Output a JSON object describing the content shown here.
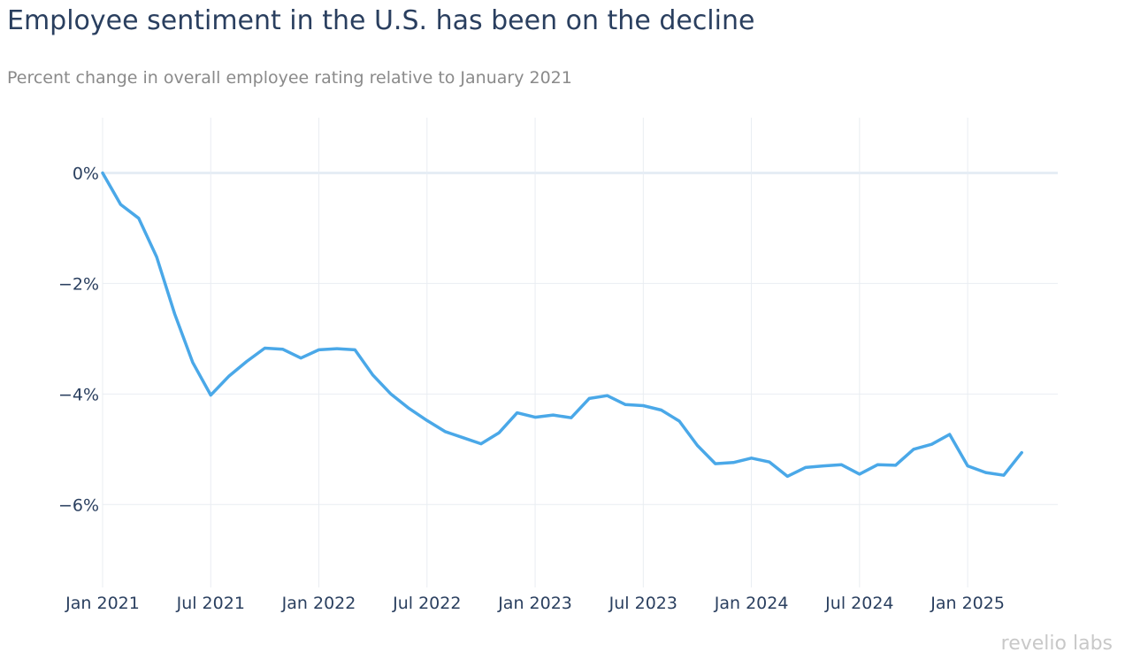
{
  "header": {
    "title": "Employee sentiment in the U.S. has been on the decline",
    "subtitle": "Percent change in overall employee rating relative to January 2021"
  },
  "brand": {
    "name": "revelio labs"
  },
  "colors": {
    "line": "#4aa8e8",
    "grid": "#e9edf2",
    "zeroline": "#e6edf5",
    "text": "#2a3f5f"
  },
  "chart_data": {
    "type": "line",
    "title": "Employee sentiment in the U.S. has been on the decline",
    "subtitle": "Percent change in overall employee rating relative to January 2021",
    "xlabel": "",
    "ylabel": "",
    "x_tick_labels": [
      "Jan 2021",
      "Jul 2021",
      "Jan 2022",
      "Jul 2022",
      "Jan 2023",
      "Jul 2023",
      "Jan 2024",
      "Jul 2024",
      "Jan 2025"
    ],
    "y_tick_labels": [
      "0%",
      "−2%",
      "−4%",
      "−6%"
    ],
    "y_ticks": [
      0,
      -2,
      -4,
      -6
    ],
    "ylim": [
      -7.5,
      1
    ],
    "xlim": [
      "2021-01",
      "2025-06"
    ],
    "grid": true,
    "legend": "none",
    "series": [
      {
        "x": [
          "2021-01",
          "2021-02",
          "2021-03",
          "2021-04",
          "2021-05",
          "2021-06",
          "2021-07",
          "2021-08",
          "2021-09",
          "2021-10",
          "2021-11",
          "2021-12",
          "2022-01",
          "2022-02",
          "2022-03",
          "2022-04",
          "2022-05",
          "2022-06",
          "2022-07",
          "2022-08",
          "2022-09",
          "2022-10",
          "2022-11",
          "2022-12",
          "2023-01",
          "2023-02",
          "2023-03",
          "2023-04",
          "2023-05",
          "2023-06",
          "2023-07",
          "2023-08",
          "2023-09",
          "2023-10",
          "2023-11",
          "2023-12",
          "2024-01",
          "2024-02",
          "2024-03",
          "2024-04",
          "2024-05",
          "2024-06",
          "2024-07",
          "2024-08",
          "2024-09",
          "2024-10",
          "2024-11",
          "2024-12",
          "2025-01",
          "2025-02",
          "2025-03",
          "2025-04"
        ],
        "values": [
          0,
          -0.57,
          -0.82,
          -1.52,
          -2.55,
          -3.43,
          -4.02,
          -3.68,
          -3.41,
          -3.17,
          -3.19,
          -3.35,
          -3.2,
          -3.18,
          -3.2,
          -3.66,
          -4.0,
          -4.26,
          -4.48,
          -4.68,
          -4.79,
          -4.9,
          -4.7,
          -4.34,
          -4.42,
          -4.38,
          -4.43,
          -4.08,
          -4.03,
          -4.19,
          -4.21,
          -4.29,
          -4.49,
          -4.93,
          -5.26,
          -5.24,
          -5.16,
          -5.23,
          -5.49,
          -5.33,
          -5.3,
          -5.28,
          -5.45,
          -5.28,
          -5.29,
          -5.0,
          -4.91,
          -4.73,
          -5.3,
          -5.42,
          -5.47,
          -5.06
        ]
      }
    ]
  }
}
